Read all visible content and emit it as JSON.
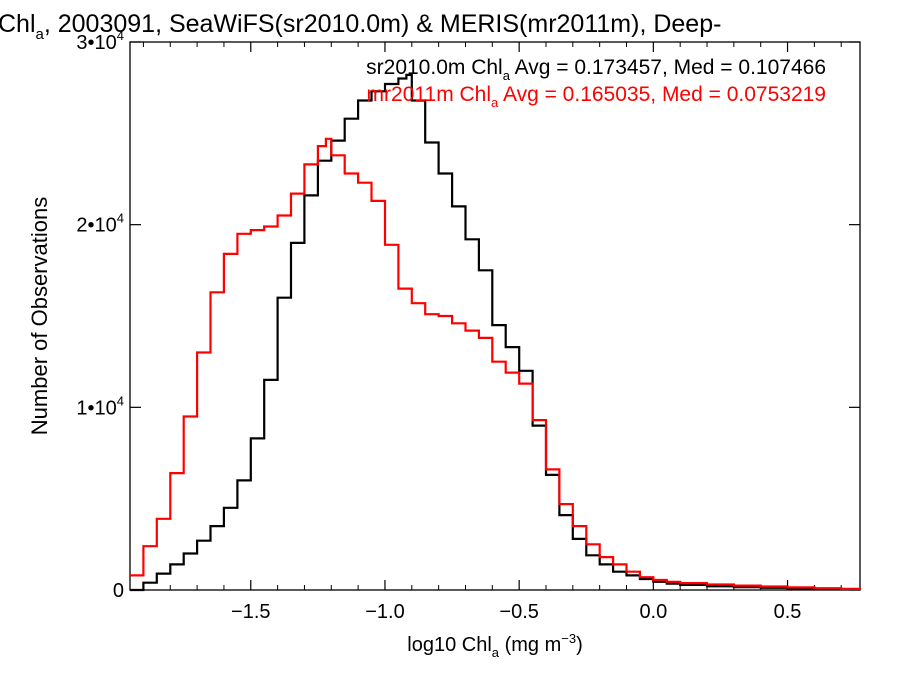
{
  "chart_data": {
    "type": "line",
    "title": {
      "prefix": "Chl",
      "sub": "a",
      "rest": ", 2003091, SeaWiFS(sr2010.0m) & MERIS(mr2011m), Deep-"
    },
    "xlabel": {
      "prefix": "log10 Chl",
      "sub": "a",
      "mid": " (mg m",
      "sup": "−3",
      "suffix": ")"
    },
    "ylabel": "Number of Observations",
    "xlim": [
      -1.95,
      0.77
    ],
    "ylim": [
      0,
      30000
    ],
    "x_ticks": [
      {
        "value": -1.5,
        "label": "−1.5"
      },
      {
        "value": -1.0,
        "label": "−1.0"
      },
      {
        "value": -0.5,
        "label": "−0.5"
      },
      {
        "value": 0.0,
        "label": "0.0"
      },
      {
        "value": 0.5,
        "label": "0.5"
      }
    ],
    "y_ticks": [
      {
        "value": 0,
        "mant": "0",
        "exp": ""
      },
      {
        "value": 10000,
        "mant": "1•10",
        "exp": "4"
      },
      {
        "value": 20000,
        "mant": "2•10",
        "exp": "4"
      },
      {
        "value": 30000,
        "mant": "3•10",
        "exp": "4"
      }
    ],
    "legend_position": "top-right",
    "series": [
      {
        "name": "sr2010.0m",
        "color": "#000000",
        "legend": {
          "prefix": "sr2010.0m Chl",
          "sub": "a",
          "rest": " Avg = 0.173457, Med = 0.107466"
        },
        "x": [
          -1.95,
          -1.9,
          -1.85,
          -1.8,
          -1.75,
          -1.7,
          -1.65,
          -1.6,
          -1.55,
          -1.5,
          -1.45,
          -1.4,
          -1.35,
          -1.3,
          -1.25,
          -1.2,
          -1.15,
          -1.1,
          -1.05,
          -1.0,
          -0.95,
          -0.92,
          -0.9,
          -0.85,
          -0.8,
          -0.75,
          -0.7,
          -0.65,
          -0.6,
          -0.55,
          -0.5,
          -0.45,
          -0.4,
          -0.35,
          -0.3,
          -0.25,
          -0.2,
          -0.15,
          -0.1,
          -0.05,
          0.0,
          0.05,
          0.1,
          0.2,
          0.3,
          0.4,
          0.5,
          0.6,
          0.7,
          0.77
        ],
        "y": [
          0,
          400,
          900,
          1400,
          2000,
          2700,
          3500,
          4500,
          6000,
          8300,
          11500,
          16000,
          19000,
          21600,
          23500,
          24600,
          25800,
          26800,
          27300,
          27700,
          28000,
          28200,
          26800,
          24500,
          22800,
          21000,
          19200,
          17500,
          14500,
          13300,
          12000,
          9000,
          6300,
          4100,
          2800,
          1900,
          1400,
          1000,
          800,
          600,
          450,
          350,
          280,
          200,
          160,
          120,
          90,
          60,
          40,
          30
        ]
      },
      {
        "name": "mr2011m",
        "color": "#ff0000",
        "legend": {
          "prefix": "mr2011m Chl",
          "sub": "a",
          "rest": " Avg = 0.165035, Med = 0.0753219"
        },
        "x": [
          -1.95,
          -1.9,
          -1.85,
          -1.8,
          -1.75,
          -1.7,
          -1.65,
          -1.6,
          -1.55,
          -1.5,
          -1.45,
          -1.4,
          -1.35,
          -1.3,
          -1.25,
          -1.22,
          -1.2,
          -1.15,
          -1.1,
          -1.05,
          -1.0,
          -0.95,
          -0.9,
          -0.85,
          -0.8,
          -0.75,
          -0.7,
          -0.65,
          -0.6,
          -0.55,
          -0.5,
          -0.45,
          -0.4,
          -0.35,
          -0.3,
          -0.25,
          -0.2,
          -0.15,
          -0.1,
          -0.05,
          0.0,
          0.05,
          0.1,
          0.2,
          0.3,
          0.4,
          0.5,
          0.6,
          0.7,
          0.77
        ],
        "y": [
          800,
          2400,
          3900,
          6400,
          9500,
          13000,
          16300,
          18400,
          19500,
          19700,
          19900,
          20500,
          21700,
          23300,
          24300,
          24700,
          23800,
          22800,
          22300,
          21300,
          18900,
          16500,
          15700,
          15100,
          15000,
          14600,
          14200,
          13800,
          12500,
          11900,
          11300,
          9300,
          6600,
          4700,
          3500,
          2500,
          1800,
          1400,
          1000,
          700,
          550,
          450,
          380,
          300,
          240,
          190,
          140,
          100,
          60,
          40
        ]
      }
    ]
  }
}
